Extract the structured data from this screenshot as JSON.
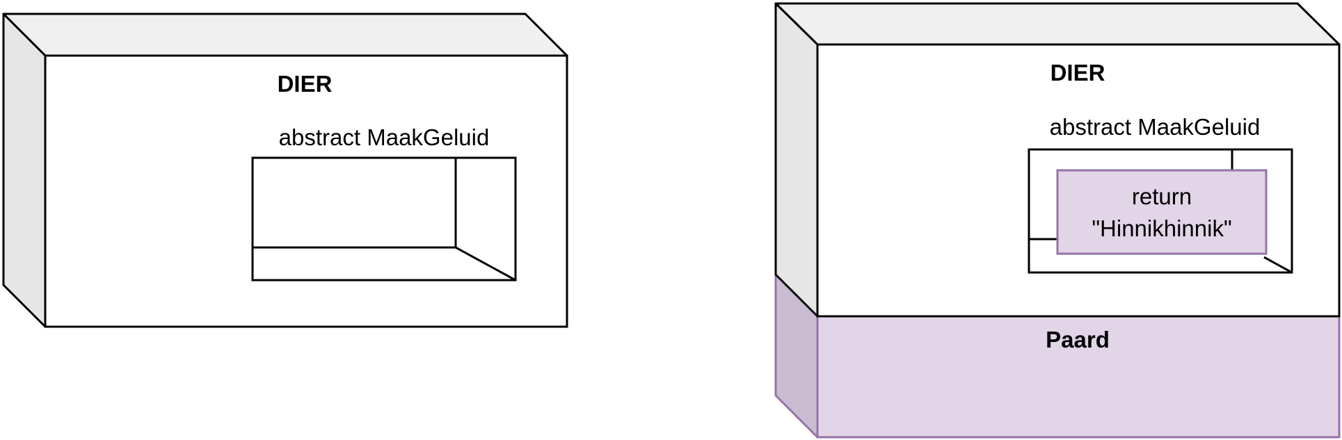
{
  "left_diagram": {
    "class_title": "DIER",
    "method_label": "abstract MaakGeluid"
  },
  "right_diagram": {
    "class_title": "DIER",
    "method_label": "abstract MaakGeluid",
    "implementation_line1": "return",
    "implementation_line2": "\"Hinnikhinnik\"",
    "subclass_title": "Paard"
  },
  "colors": {
    "stroke": "#000000",
    "box_face": "#ffffff",
    "box_top": "#f0f0f0",
    "box_side": "#e6e6e6",
    "subclass_fill": "#e1d5e7",
    "subclass_side": "#c9bcd0",
    "subclass_stroke": "#9673a6"
  }
}
